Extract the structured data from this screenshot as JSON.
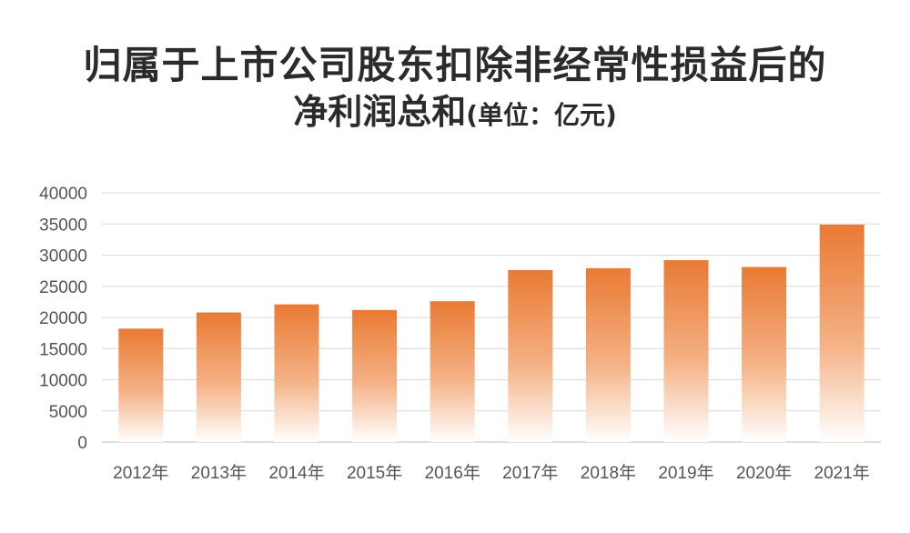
{
  "chart_data": {
    "type": "bar",
    "title": "归属于上市公司股东扣除非经常性损益后的",
    "title_line2": "净利润总和",
    "title_unit": "(单位：亿元)",
    "categories": [
      "2012年",
      "2013年",
      "2014年",
      "2015年",
      "2016年",
      "2017年",
      "2018年",
      "2019年",
      "2020年",
      "2021年"
    ],
    "values": [
      18200,
      20800,
      22100,
      21200,
      22600,
      27600,
      27900,
      29200,
      28100,
      34900
    ],
    "ylim": [
      0,
      40000
    ],
    "yticks": [
      "0",
      "5000",
      "10000",
      "15000",
      "20000",
      "25000",
      "30000",
      "35000",
      "40000"
    ],
    "grid": true,
    "legend": "none",
    "bar_color_top": "#e97a33",
    "bar_color_bottom": "#ffffff"
  }
}
